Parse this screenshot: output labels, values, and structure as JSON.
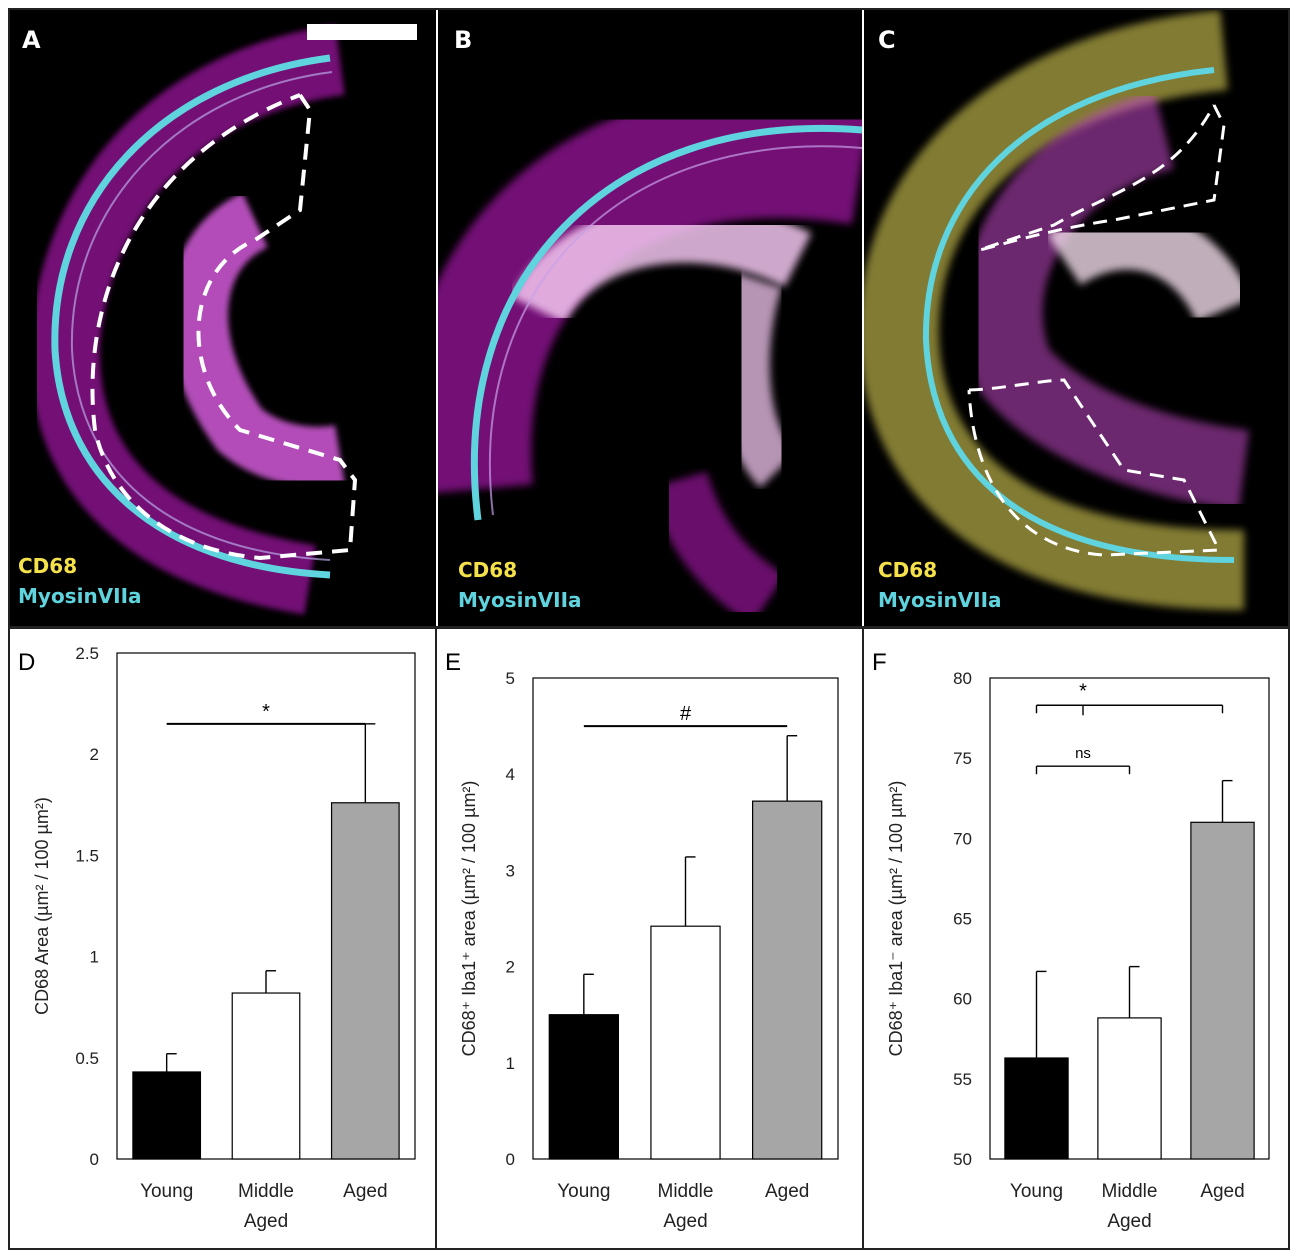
{
  "images": [
    {
      "label": "A",
      "stain1": "CD68",
      "stain2": "MyosinVIIa"
    },
    {
      "label": "B",
      "stain1": "CD68",
      "stain2": "MyosinVIIa"
    },
    {
      "label": "C",
      "stain1": "CD68",
      "stain2": "MyosinVIIa"
    }
  ],
  "colors": {
    "cd68": "#f5e24a",
    "myosin": "#5fd3de",
    "magenta": "#d21bd6"
  },
  "chart_data": [
    {
      "type": "bar",
      "panel_label": "D",
      "categories": [
        "Young",
        "Middle Aged",
        "Aged"
      ],
      "category_lines": [
        [
          "Young"
        ],
        [
          "Middle",
          "Aged"
        ],
        [
          "Aged"
        ]
      ],
      "values": [
        0.43,
        0.82,
        1.76
      ],
      "errors": [
        0.09,
        0.11,
        0.39
      ],
      "bar_colors": [
        "#000000",
        "#ffffff",
        "#a6a6a6"
      ],
      "ylabel": "CD68 Area (µm² / 100 µm²)",
      "ylim": [
        0,
        2.5
      ],
      "yticks": [
        0,
        0.5,
        1,
        1.5,
        2,
        2.5
      ],
      "ytick_labels": [
        "0",
        "0.5",
        "1",
        "1.5",
        "2",
        "2.5"
      ],
      "annotations": [
        {
          "from": 0,
          "to": 2,
          "y": 2.15,
          "text": "*",
          "style": "line"
        }
      ]
    },
    {
      "type": "bar",
      "panel_label": "E",
      "categories": [
        "Young",
        "Middle Aged",
        "Aged"
      ],
      "category_lines": [
        [
          "Young"
        ],
        [
          "Middle",
          "Aged"
        ],
        [
          "Aged"
        ]
      ],
      "values": [
        1.5,
        2.42,
        3.72
      ],
      "errors": [
        0.42,
        0.72,
        0.68
      ],
      "bar_colors": [
        "#000000",
        "#ffffff",
        "#a6a6a6"
      ],
      "ylabel": "CD68⁺ Iba1⁺ area  (µm² / 100 µm²)",
      "ylim": [
        0,
        5
      ],
      "yticks": [
        0,
        1,
        2,
        3,
        4,
        5
      ],
      "ytick_labels": [
        "0",
        "1",
        "2",
        "3",
        "4",
        "5"
      ],
      "annotations": [
        {
          "from": 0,
          "to": 2,
          "y": 4.5,
          "text": "#",
          "style": "line"
        }
      ]
    },
    {
      "type": "bar",
      "panel_label": "F",
      "categories": [
        "Young",
        "Middle Aged",
        "Aged"
      ],
      "category_lines": [
        [
          "Young"
        ],
        [
          "Middle",
          "Aged"
        ],
        [
          "Aged"
        ]
      ],
      "values": [
        56.3,
        58.8,
        71.0
      ],
      "errors": [
        5.4,
        3.2,
        2.6
      ],
      "bar_colors": [
        "#000000",
        "#ffffff",
        "#a6a6a6"
      ],
      "ylabel": "CD68⁺ Iba1⁻ area (µm² / 100 µm²)",
      "ylim": [
        50,
        80
      ],
      "yticks": [
        50,
        55,
        60,
        65,
        70,
        75,
        80
      ],
      "ytick_labels": [
        "50",
        "55",
        "60",
        "65",
        "70",
        "75",
        "80"
      ],
      "annotations": [
        {
          "from": 0,
          "to": 1,
          "y": 74.5,
          "text": "ns",
          "style": "bracket"
        },
        {
          "from": 0,
          "to": 2,
          "y": 78.3,
          "text": "*",
          "style": "bracket-mid",
          "mid_from": 0.5
        }
      ]
    }
  ]
}
